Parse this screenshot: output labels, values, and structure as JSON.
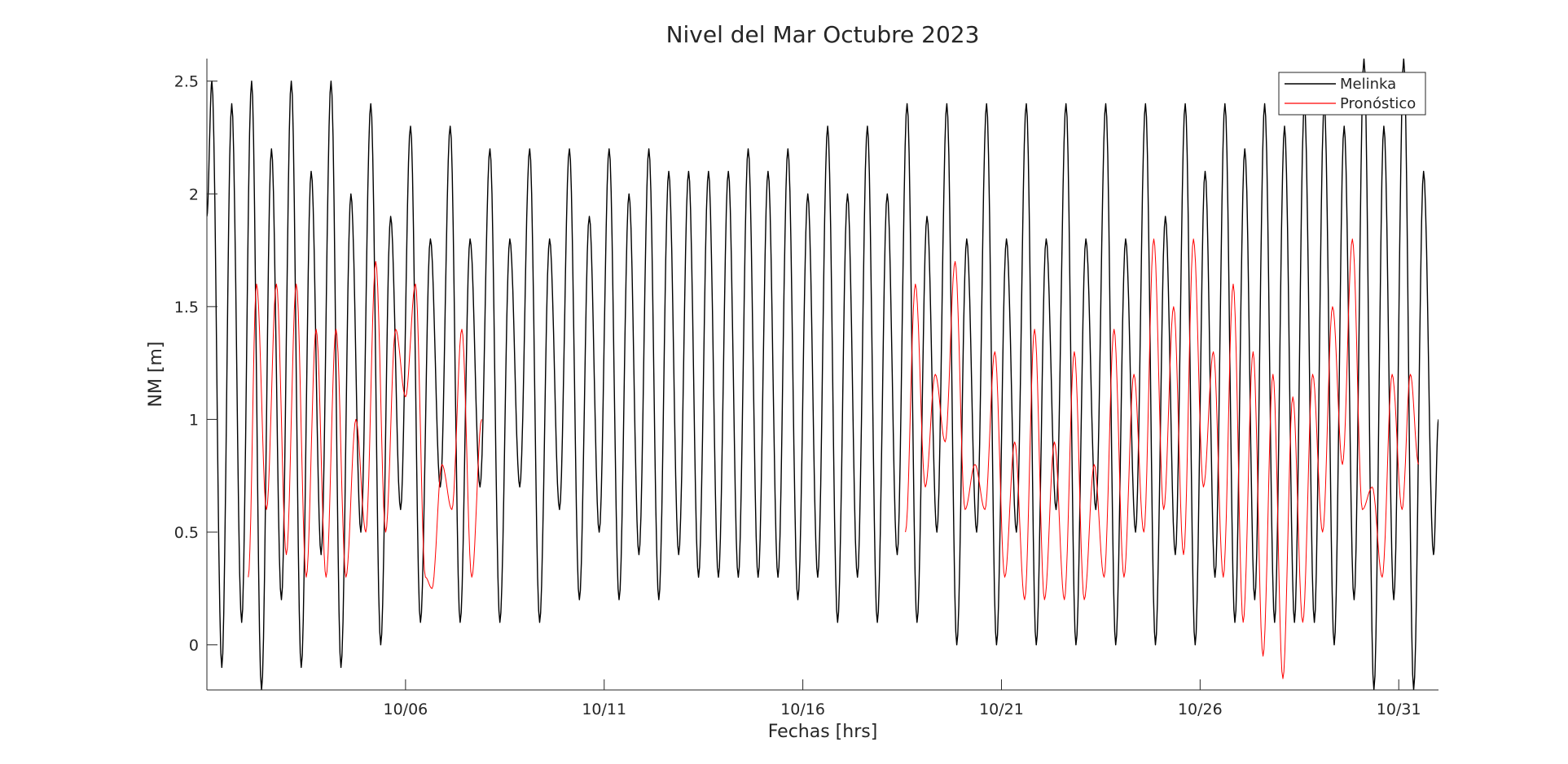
{
  "chart_data": {
    "type": "line",
    "title": "Nivel del Mar Octubre 2023",
    "xlabel": "Fechas [hrs]",
    "ylabel": "NM [m]",
    "x_axis": {
      "min": "2023-10-01T00:00",
      "max": "2023-11-01T00:00",
      "ticks": [
        {
          "date": "2023-10-06T00:00",
          "label": "10/06"
        },
        {
          "date": "2023-10-11T00:00",
          "label": "10/11"
        },
        {
          "date": "2023-10-16T00:00",
          "label": "10/16"
        },
        {
          "date": "2023-10-21T00:00",
          "label": "10/21"
        },
        {
          "date": "2023-10-26T00:00",
          "label": "10/26"
        },
        {
          "date": "2023-10-31T00:00",
          "label": "10/31"
        }
      ]
    },
    "y_axis": {
      "min": -0.2,
      "max": 2.6,
      "ticks": [
        {
          "value": 0,
          "label": "0"
        },
        {
          "value": 0.5,
          "label": "0.5"
        },
        {
          "value": 1,
          "label": "1"
        },
        {
          "value": 1.5,
          "label": "1.5"
        },
        {
          "value": 2,
          "label": "2"
        },
        {
          "value": 2.5,
          "label": "2.5"
        }
      ]
    },
    "grid": false,
    "legend": {
      "position": "top-right",
      "entries": [
        "Melinka",
        "Pronóstico"
      ]
    },
    "series": [
      {
        "name": "Melinka",
        "color": "#000000",
        "extrema": [
          [
            "2023-10-01T00:00",
            1.9
          ],
          [
            "2023-10-01T03:00",
            2.5
          ],
          [
            "2023-10-01T09:00",
            -0.1
          ],
          [
            "2023-10-01T15:00",
            2.4
          ],
          [
            "2023-10-01T21:00",
            0.1
          ],
          [
            "2023-10-02T03:00",
            2.5
          ],
          [
            "2023-10-02T09:00",
            -0.2
          ],
          [
            "2023-10-02T15:00",
            2.2
          ],
          [
            "2023-10-02T21:00",
            0.2
          ],
          [
            "2023-10-03T03:00",
            2.5
          ],
          [
            "2023-10-03T09:00",
            -0.1
          ],
          [
            "2023-10-03T15:00",
            2.1
          ],
          [
            "2023-10-03T21:00",
            0.4
          ],
          [
            "2023-10-04T03:00",
            2.5
          ],
          [
            "2023-10-04T09:00",
            -0.1
          ],
          [
            "2023-10-04T15:00",
            2.0
          ],
          [
            "2023-10-04T21:00",
            0.5
          ],
          [
            "2023-10-05T03:00",
            2.4
          ],
          [
            "2023-10-05T09:00",
            0.0
          ],
          [
            "2023-10-05T15:00",
            1.9
          ],
          [
            "2023-10-05T21:00",
            0.6
          ],
          [
            "2023-10-06T03:00",
            2.3
          ],
          [
            "2023-10-06T09:00",
            0.1
          ],
          [
            "2023-10-06T15:00",
            1.8
          ],
          [
            "2023-10-06T21:00",
            0.7
          ],
          [
            "2023-10-07T03:00",
            2.3
          ],
          [
            "2023-10-07T09:00",
            0.1
          ],
          [
            "2023-10-07T15:00",
            1.8
          ],
          [
            "2023-10-07T21:00",
            0.7
          ],
          [
            "2023-10-08T03:00",
            2.2
          ],
          [
            "2023-10-08T09:00",
            0.1
          ],
          [
            "2023-10-08T15:00",
            1.8
          ],
          [
            "2023-10-08T21:00",
            0.7
          ],
          [
            "2023-10-09T03:00",
            2.2
          ],
          [
            "2023-10-09T09:00",
            0.1
          ],
          [
            "2023-10-09T15:00",
            1.8
          ],
          [
            "2023-10-09T21:00",
            0.6
          ],
          [
            "2023-10-10T03:00",
            2.2
          ],
          [
            "2023-10-10T09:00",
            0.2
          ],
          [
            "2023-10-10T15:00",
            1.9
          ],
          [
            "2023-10-10T21:00",
            0.5
          ],
          [
            "2023-10-11T03:00",
            2.2
          ],
          [
            "2023-10-11T09:00",
            0.2
          ],
          [
            "2023-10-11T15:00",
            2.0
          ],
          [
            "2023-10-11T21:00",
            0.4
          ],
          [
            "2023-10-12T03:00",
            2.2
          ],
          [
            "2023-10-12T09:00",
            0.2
          ],
          [
            "2023-10-12T15:00",
            2.1
          ],
          [
            "2023-10-12T21:00",
            0.4
          ],
          [
            "2023-10-13T03:00",
            2.1
          ],
          [
            "2023-10-13T09:00",
            0.3
          ],
          [
            "2023-10-13T15:00",
            2.1
          ],
          [
            "2023-10-13T21:00",
            0.3
          ],
          [
            "2023-10-14T03:00",
            2.1
          ],
          [
            "2023-10-14T09:00",
            0.3
          ],
          [
            "2023-10-14T15:00",
            2.2
          ],
          [
            "2023-10-14T21:00",
            0.3
          ],
          [
            "2023-10-15T03:00",
            2.1
          ],
          [
            "2023-10-15T09:00",
            0.3
          ],
          [
            "2023-10-15T15:00",
            2.2
          ],
          [
            "2023-10-15T21:00",
            0.2
          ],
          [
            "2023-10-16T03:00",
            2.0
          ],
          [
            "2023-10-16T09:00",
            0.3
          ],
          [
            "2023-10-16T15:00",
            2.3
          ],
          [
            "2023-10-16T21:00",
            0.1
          ],
          [
            "2023-10-17T03:00",
            2.0
          ],
          [
            "2023-10-17T09:00",
            0.3
          ],
          [
            "2023-10-17T15:00",
            2.3
          ],
          [
            "2023-10-17T21:00",
            0.1
          ],
          [
            "2023-10-18T03:00",
            2.0
          ],
          [
            "2023-10-18T09:00",
            0.4
          ],
          [
            "2023-10-18T15:00",
            2.4
          ],
          [
            "2023-10-18T21:00",
            0.1
          ],
          [
            "2023-10-19T03:00",
            1.9
          ],
          [
            "2023-10-19T09:00",
            0.5
          ],
          [
            "2023-10-19T15:00",
            2.4
          ],
          [
            "2023-10-19T21:00",
            0.0
          ],
          [
            "2023-10-20T03:00",
            1.8
          ],
          [
            "2023-10-20T09:00",
            0.5
          ],
          [
            "2023-10-20T15:00",
            2.4
          ],
          [
            "2023-10-20T21:00",
            0.0
          ],
          [
            "2023-10-21T03:00",
            1.8
          ],
          [
            "2023-10-21T09:00",
            0.5
          ],
          [
            "2023-10-21T15:00",
            2.4
          ],
          [
            "2023-10-21T21:00",
            0.0
          ],
          [
            "2023-10-22T03:00",
            1.8
          ],
          [
            "2023-10-22T09:00",
            0.6
          ],
          [
            "2023-10-22T15:00",
            2.4
          ],
          [
            "2023-10-22T21:00",
            0.0
          ],
          [
            "2023-10-23T03:00",
            1.8
          ],
          [
            "2023-10-23T09:00",
            0.6
          ],
          [
            "2023-10-23T15:00",
            2.4
          ],
          [
            "2023-10-23T21:00",
            0.0
          ],
          [
            "2023-10-24T03:00",
            1.8
          ],
          [
            "2023-10-24T09:00",
            0.5
          ],
          [
            "2023-10-24T15:00",
            2.4
          ],
          [
            "2023-10-24T21:00",
            0.0
          ],
          [
            "2023-10-25T03:00",
            1.9
          ],
          [
            "2023-10-25T09:00",
            0.4
          ],
          [
            "2023-10-25T15:00",
            2.4
          ],
          [
            "2023-10-25T21:00",
            0.0
          ],
          [
            "2023-10-26T03:00",
            2.1
          ],
          [
            "2023-10-26T09:00",
            0.3
          ],
          [
            "2023-10-26T15:00",
            2.4
          ],
          [
            "2023-10-26T21:00",
            0.1
          ],
          [
            "2023-10-27T03:00",
            2.2
          ],
          [
            "2023-10-27T09:00",
            0.2
          ],
          [
            "2023-10-27T15:00",
            2.4
          ],
          [
            "2023-10-27T21:00",
            0.1
          ],
          [
            "2023-10-28T03:00",
            2.3
          ],
          [
            "2023-10-28T09:00",
            0.1
          ],
          [
            "2023-10-28T15:00",
            2.4
          ],
          [
            "2023-10-28T21:00",
            0.1
          ],
          [
            "2023-10-29T03:00",
            2.4
          ],
          [
            "2023-10-29T09:00",
            0.0
          ],
          [
            "2023-10-29T15:00",
            2.3
          ],
          [
            "2023-10-29T21:00",
            0.2
          ],
          [
            "2023-10-30T03:00",
            2.6
          ],
          [
            "2023-10-30T09:00",
            -0.2
          ],
          [
            "2023-10-30T15:00",
            2.3
          ],
          [
            "2023-10-30T21:00",
            0.2
          ],
          [
            "2023-10-31T03:00",
            2.6
          ],
          [
            "2023-10-31T09:00",
            -0.2
          ],
          [
            "2023-10-31T15:00",
            2.1
          ],
          [
            "2023-10-31T21:00",
            0.4
          ],
          [
            "2023-11-01T00:00",
            1.0
          ]
        ]
      },
      {
        "name": "Pronóstico",
        "color": "#ff0000",
        "segments": [
          [
            [
              "2023-10-02T01:00",
              0.3
            ],
            [
              "2023-10-02T06:00",
              1.6
            ],
            [
              "2023-10-02T12:00",
              0.6
            ],
            [
              "2023-10-02T18:00",
              1.6
            ],
            [
              "2023-10-03T00:00",
              0.4
            ],
            [
              "2023-10-03T06:00",
              1.6
            ],
            [
              "2023-10-03T12:00",
              0.3
            ],
            [
              "2023-10-03T18:00",
              1.4
            ],
            [
              "2023-10-04T00:00",
              0.3
            ],
            [
              "2023-10-04T06:00",
              1.4
            ],
            [
              "2023-10-04T12:00",
              0.3
            ],
            [
              "2023-10-04T18:00",
              1.0
            ],
            [
              "2023-10-05T00:00",
              0.5
            ],
            [
              "2023-10-05T06:00",
              1.7
            ],
            [
              "2023-10-05T12:00",
              0.5
            ],
            [
              "2023-10-05T18:00",
              1.4
            ],
            [
              "2023-10-06T00:00",
              1.1
            ],
            [
              "2023-10-06T06:00",
              1.6
            ],
            [
              "2023-10-06T12:00",
              0.3
            ],
            [
              "2023-10-06T16:00",
              0.25
            ],
            [
              "2023-10-06T22:00",
              0.8
            ],
            [
              "2023-10-07T04:00",
              0.6
            ],
            [
              "2023-10-07T10:00",
              1.4
            ],
            [
              "2023-10-07T16:00",
              0.3
            ],
            [
              "2023-10-07T22:00",
              1.0
            ]
          ],
          [
            [
              "2023-10-18T14:00",
              0.5
            ],
            [
              "2023-10-18T20:00",
              1.6
            ],
            [
              "2023-10-19T02:00",
              0.7
            ],
            [
              "2023-10-19T08:00",
              1.2
            ],
            [
              "2023-10-19T14:00",
              0.9
            ],
            [
              "2023-10-19T20:00",
              1.7
            ],
            [
              "2023-10-20T02:00",
              0.6
            ],
            [
              "2023-10-20T08:00",
              0.8
            ],
            [
              "2023-10-20T14:00",
              0.6
            ],
            [
              "2023-10-20T20:00",
              1.3
            ],
            [
              "2023-10-21T02:00",
              0.3
            ],
            [
              "2023-10-21T08:00",
              0.9
            ],
            [
              "2023-10-21T14:00",
              0.2
            ],
            [
              "2023-10-21T20:00",
              1.4
            ],
            [
              "2023-10-22T02:00",
              0.2
            ],
            [
              "2023-10-22T08:00",
              0.9
            ],
            [
              "2023-10-22T14:00",
              0.2
            ],
            [
              "2023-10-22T20:00",
              1.3
            ],
            [
              "2023-10-23T02:00",
              0.2
            ],
            [
              "2023-10-23T08:00",
              0.8
            ],
            [
              "2023-10-23T14:00",
              0.3
            ],
            [
              "2023-10-23T20:00",
              1.4
            ],
            [
              "2023-10-24T02:00",
              0.3
            ],
            [
              "2023-10-24T08:00",
              1.2
            ],
            [
              "2023-10-24T14:00",
              0.5
            ],
            [
              "2023-10-24T20:00",
              1.8
            ],
            [
              "2023-10-25T02:00",
              0.6
            ],
            [
              "2023-10-25T08:00",
              1.5
            ],
            [
              "2023-10-25T14:00",
              0.4
            ],
            [
              "2023-10-25T20:00",
              1.8
            ],
            [
              "2023-10-26T02:00",
              0.7
            ],
            [
              "2023-10-26T08:00",
              1.3
            ],
            [
              "2023-10-26T14:00",
              0.3
            ],
            [
              "2023-10-26T20:00",
              1.6
            ],
            [
              "2023-10-27T02:00",
              0.1
            ],
            [
              "2023-10-27T08:00",
              1.3
            ],
            [
              "2023-10-27T14:00",
              -0.05
            ],
            [
              "2023-10-27T20:00",
              1.2
            ],
            [
              "2023-10-28T02:00",
              -0.15
            ],
            [
              "2023-10-28T08:00",
              1.1
            ],
            [
              "2023-10-28T14:00",
              0.1
            ],
            [
              "2023-10-28T20:00",
              1.2
            ],
            [
              "2023-10-29T02:00",
              0.5
            ],
            [
              "2023-10-29T08:00",
              1.5
            ],
            [
              "2023-10-29T14:00",
              0.8
            ],
            [
              "2023-10-29T20:00",
              1.8
            ],
            [
              "2023-10-30T02:00",
              0.6
            ],
            [
              "2023-10-30T08:00",
              0.7
            ],
            [
              "2023-10-30T14:00",
              0.3
            ],
            [
              "2023-10-30T20:00",
              1.2
            ],
            [
              "2023-10-31T02:00",
              0.6
            ],
            [
              "2023-10-31T07:00",
              1.2
            ],
            [
              "2023-10-31T12:00",
              0.8
            ]
          ]
        ]
      }
    ]
  }
}
